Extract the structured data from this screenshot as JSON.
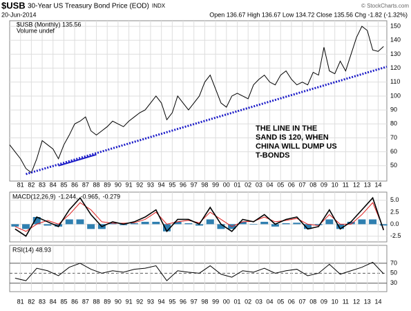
{
  "header": {
    "symbol": "$USB",
    "title": "30-Year US Treasury Bond Price (EOD)",
    "exchange": "INDX",
    "date": "20-Jun-2014",
    "quote": "Open 136.67  High 136.67  Low 134.72  Close 135.56  Chg -1.82 (-1.32%)",
    "credit": "© StockCharts.com"
  },
  "chart_data": [
    {
      "type": "line",
      "legend": [
        "$USB (Monthly) 135.56",
        "Volume undef"
      ],
      "color": "#000000",
      "x": [
        1980,
        1980.5,
        1981,
        1981.5,
        1982,
        1982.5,
        1983,
        1983.5,
        1984,
        1984.5,
        1985,
        1985.5,
        1986,
        1986.5,
        1987,
        1987.5,
        1988,
        1988.5,
        1989,
        1989.5,
        1990,
        1990.5,
        1991,
        1991.5,
        1992,
        1992.5,
        1993,
        1993.5,
        1994,
        1994.5,
        1995,
        1995.5,
        1996,
        1996.5,
        1997,
        1997.5,
        1998,
        1998.5,
        1999,
        1999.5,
        2000,
        2000.5,
        2001,
        2001.5,
        2002,
        2002.5,
        2003,
        2003.5,
        2004,
        2004.5,
        2005,
        2005.5,
        2006,
        2006.5,
        2007,
        2007.5,
        2008,
        2008.5,
        2009,
        2009.5,
        2010,
        2010.5,
        2011,
        2011.5,
        2012,
        2012.5,
        2013,
        2013.5,
        2014,
        2014.5
      ],
      "values": [
        65,
        60,
        55,
        48,
        45,
        55,
        68,
        65,
        62,
        55,
        65,
        72,
        80,
        82,
        85,
        75,
        72,
        75,
        78,
        82,
        80,
        78,
        82,
        85,
        88,
        90,
        95,
        100,
        95,
        83,
        88,
        100,
        95,
        90,
        95,
        100,
        110,
        115,
        105,
        95,
        92,
        100,
        102,
        100,
        98,
        108,
        112,
        115,
        110,
        108,
        115,
        118,
        112,
        108,
        110,
        108,
        117,
        115,
        135,
        118,
        116,
        125,
        118,
        130,
        142,
        150,
        147,
        133,
        132,
        135.56
      ],
      "xlim": [
        1980,
        2014.8
      ],
      "xticks": [
        {
          "value": 1981,
          "label": "81"
        },
        {
          "value": 1982,
          "label": "82"
        },
        {
          "value": 1983,
          "label": "83"
        },
        {
          "value": 1984,
          "label": "84"
        },
        {
          "value": 1985,
          "label": "85"
        },
        {
          "value": 1986,
          "label": "86"
        },
        {
          "value": 1987,
          "label": "87"
        },
        {
          "value": 1988,
          "label": "88"
        },
        {
          "value": 1989,
          "label": "89"
        },
        {
          "value": 1990,
          "label": "90"
        },
        {
          "value": 1991,
          "label": "91"
        },
        {
          "value": 1992,
          "label": "92"
        },
        {
          "value": 1993,
          "label": "93"
        },
        {
          "value": 1994,
          "label": "94"
        },
        {
          "value": 1995,
          "label": "95"
        },
        {
          "value": 1996,
          "label": "96"
        },
        {
          "value": 1997,
          "label": "97"
        },
        {
          "value": 1998,
          "label": "98"
        },
        {
          "value": 1999,
          "label": "99"
        },
        {
          "value": 2000,
          "label": "00"
        },
        {
          "value": 2001,
          "label": "01"
        },
        {
          "value": 2002,
          "label": "02"
        },
        {
          "value": 2003,
          "label": "03"
        },
        {
          "value": 2004,
          "label": "04"
        },
        {
          "value": 2005,
          "label": "05"
        },
        {
          "value": 2006,
          "label": "06"
        },
        {
          "value": 2007,
          "label": "07"
        },
        {
          "value": 2008,
          "label": "08"
        },
        {
          "value": 2009,
          "label": "09"
        },
        {
          "value": 2010,
          "label": "10"
        },
        {
          "value": 2011,
          "label": "11"
        },
        {
          "value": 2012,
          "label": "12"
        },
        {
          "value": 2013,
          "label": "13"
        },
        {
          "value": 2014,
          "label": "14"
        }
      ],
      "ylim": [
        39,
        154
      ],
      "yticks": [
        50,
        60,
        70,
        80,
        90,
        100,
        110,
        120,
        130,
        140,
        150
      ],
      "grid": true,
      "trendlines": [
        {
          "x": [
            1981.5,
            2014.8
          ],
          "y": [
            44,
            121
          ],
          "color": "#1c1cc8",
          "style": "dotted"
        },
        {
          "x": [
            1984.5,
            1988
          ],
          "y": [
            50,
            58
          ],
          "color": "#1c1cc8",
          "style": "solid"
        }
      ],
      "annotation": {
        "lines": [
          "THE LINE IN THE",
          "SAND IS 120, WHEN",
          "CHINA WILL DUMP US",
          "T-BONDS"
        ],
        "color": "#e00000"
      }
    },
    {
      "type": "macd",
      "legend": [
        "MACD(12,26,9)",
        "-1.244,",
        "-0.965,",
        "-0.279"
      ],
      "x": [
        1980.5,
        1981.5,
        1982.5,
        1983.5,
        1984.5,
        1985.5,
        1986.5,
        1987.5,
        1988.5,
        1989.5,
        1990.5,
        1991.5,
        1992.5,
        1993.5,
        1994.5,
        1995.5,
        1996.5,
        1997.5,
        1998.5,
        1999.5,
        2000.5,
        2001.5,
        2002.5,
        2003.5,
        2004.5,
        2005.5,
        2006.5,
        2007.5,
        2008.5,
        2009.5,
        2010.5,
        2011.5,
        2012.5,
        2013.5,
        2014.5
      ],
      "series": [
        {
          "name": "MACD",
          "color": "#000000",
          "values": [
            -1,
            -2.5,
            1.5,
            0.5,
            -0.5,
            3,
            5.5,
            2,
            -0.5,
            0.5,
            0,
            0.5,
            1.5,
            3,
            -1.5,
            1,
            1,
            0,
            3.5,
            0,
            -1.5,
            1,
            0.5,
            2,
            0,
            1,
            1.5,
            -1,
            -0.5,
            3,
            -1,
            0.5,
            3,
            5.5,
            -1.244
          ]
        },
        {
          "name": "Signal",
          "color": "#e02020",
          "values": [
            -0.5,
            -1.5,
            0,
            0.8,
            0,
            2,
            4.5,
            3,
            0.5,
            0.2,
            0.2,
            0.3,
            1,
            2.5,
            0,
            0.5,
            0.8,
            0.3,
            2.5,
            1,
            -0.5,
            0.5,
            0.6,
            1.5,
            0.5,
            0.8,
            1.2,
            0,
            -0.3,
            2,
            0,
            0,
            2,
            4.5,
            -0.965
          ]
        },
        {
          "name": "Histogram",
          "color": "#2f7fb0",
          "values": [
            -0.5,
            -1,
            1.5,
            -0.3,
            -0.5,
            1,
            1,
            -1,
            -1,
            0.3,
            -0.2,
            0.2,
            0.5,
            0.5,
            -1.5,
            0.5,
            0.2,
            -0.3,
            1,
            -1,
            -1,
            0.5,
            -0.1,
            0.5,
            -0.5,
            0.2,
            0.3,
            -1,
            -0.2,
            1,
            -1,
            0.5,
            1,
            1,
            -0.279
          ]
        }
      ],
      "ylim": [
        -3.7,
        6.7
      ],
      "yticks": [
        {
          "value": -2.5,
          "label": "-2.5"
        },
        {
          "value": 0,
          "label": "0.0"
        },
        {
          "value": 2.5,
          "label": "2.5"
        },
        {
          "value": 5,
          "label": "5.0"
        }
      ],
      "grid": true
    },
    {
      "type": "rsi",
      "legend": [
        "RSI(14) 48.93"
      ],
      "color": "#000000",
      "x": [
        1980.5,
        1981.5,
        1982.5,
        1983.5,
        1984.5,
        1985.5,
        1986.5,
        1987.5,
        1988.5,
        1989.5,
        1990.5,
        1991.5,
        1992.5,
        1993.5,
        1994.5,
        1995.5,
        1996.5,
        1997.5,
        1998.5,
        1999.5,
        2000.5,
        2001.5,
        2002.5,
        2003.5,
        2004.5,
        2005.5,
        2006.5,
        2007.5,
        2008.5,
        2009.5,
        2010.5,
        2011.5,
        2012.5,
        2013.5,
        2014.5
      ],
      "values": [
        40,
        35,
        60,
        55,
        45,
        62,
        70,
        58,
        50,
        55,
        52,
        58,
        60,
        65,
        35,
        55,
        52,
        50,
        65,
        48,
        42,
        55,
        52,
        60,
        50,
        55,
        58,
        45,
        50,
        68,
        48,
        55,
        62,
        72,
        48.93
      ],
      "ylim": [
        13,
        106
      ],
      "yticks": [
        30,
        50,
        70
      ]
    }
  ]
}
